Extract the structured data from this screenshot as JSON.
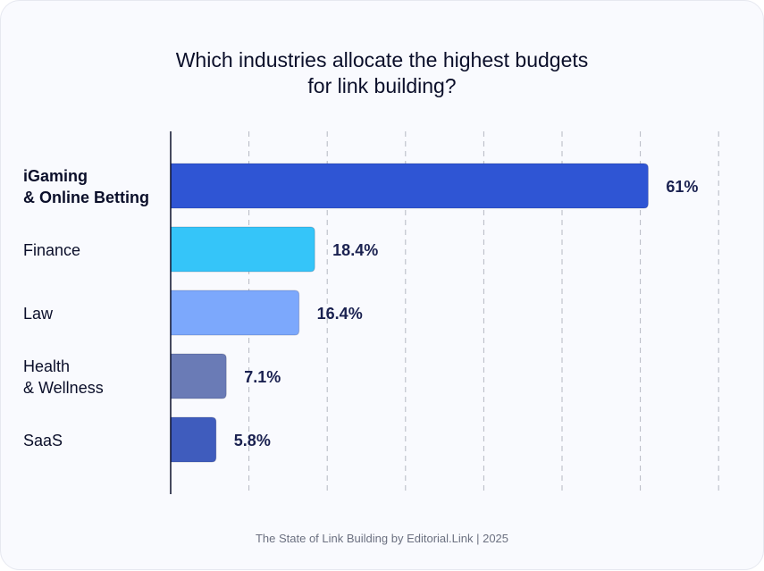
{
  "chart_data": {
    "type": "bar",
    "orientation": "horizontal",
    "title_lines": [
      "Which industries allocate the highest budgets",
      "for link building?"
    ],
    "categories": [
      {
        "lines": [
          "iGaming",
          "& Online Betting"
        ],
        "bold": true
      },
      {
        "lines": [
          "Finance"
        ],
        "bold": false
      },
      {
        "lines": [
          "Law"
        ],
        "bold": false
      },
      {
        "lines": [
          "Health",
          "& Wellness"
        ],
        "bold": false
      },
      {
        "lines": [
          "SaaS"
        ],
        "bold": false
      }
    ],
    "values": [
      61,
      18.4,
      16.4,
      7.1,
      5.8
    ],
    "value_labels": [
      "61%",
      "18.4%",
      "16.4%",
      "7.1%",
      "5.8%"
    ],
    "colors": [
      "#2f55d4",
      "#35c5f9",
      "#7ca8fc",
      "#6a7bb6",
      "#3f5cbd"
    ],
    "xlim": [
      0,
      70
    ],
    "grid_step": 10,
    "grid": true,
    "label_color": "#1a2150"
  },
  "footer": "The State of Link Building by Editorial.Link | 2025"
}
